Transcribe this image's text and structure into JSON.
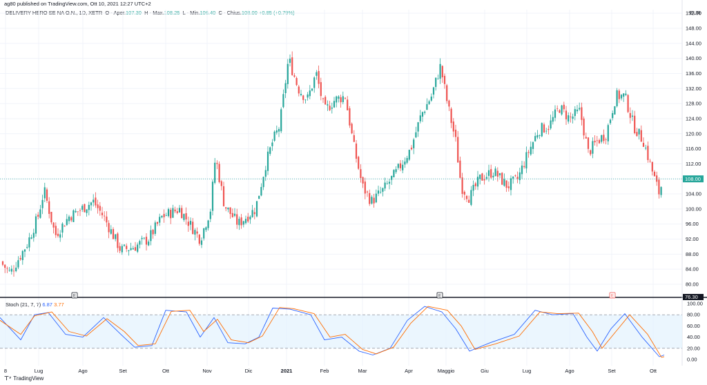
{
  "header": {
    "text": "ag80 published on TradingView.com, Ott 10, 2021 12:27 UTC+2"
  },
  "legend": {
    "symbol": "DELIVERY HERO SE NA O.N., 1D, XETR",
    "open_label": "O",
    "open_text": "Aper.",
    "open": "107.30",
    "high_label": "H",
    "high_text": "Max.",
    "high": "108.25",
    "low_label": "L",
    "low_text": "Min.",
    "low": "106.40",
    "close_label": "C",
    "close_text": "Chius.",
    "close": "108.00",
    "change": "+0.85 (+0.79%)"
  },
  "currency": "EUR",
  "stoch_legend": {
    "name": "Stoch (21, 7, 7)",
    "k": "6.87",
    "d": "3.77"
  },
  "footer": {
    "brand": "TradingView"
  },
  "colors": {
    "up": "#26a69a",
    "down": "#ef5350",
    "k_line": "#2962ff",
    "d_line": "#ff6d00",
    "band": "#e3f2fd",
    "price_tag": "#26a69a",
    "low_tag": "#131722"
  },
  "chart_data": [
    {
      "type": "candlestick",
      "title": "DELIVERY HERO SE NA O.N., 1D, XETR",
      "ylim": [
        76.3,
        150
      ],
      "y_ticks": [
        "80.00",
        "84.00",
        "88.00",
        "92.00",
        "96.00",
        "100.00",
        "104.00",
        "108.00",
        "112.00",
        "116.00",
        "120.00",
        "124.00",
        "128.00",
        "132.00",
        "136.00",
        "140.00",
        "144.00",
        "148.00",
        "152.00"
      ],
      "x_tick_labels": [
        "8",
        "Lug",
        "Ago",
        "Set",
        "Ott",
        "Nov",
        "Dic",
        "2021",
        "Feb",
        "Mar",
        "Apr",
        "Maggio",
        "Giu",
        "Lug",
        "Ago",
        "Set",
        "Ott"
      ],
      "last_price": "108.00",
      "low_marker": "76.30",
      "event_markers": [
        "E",
        "E",
        "E"
      ],
      "anchors": [
        {
          "x": 0,
          "close": 86
        },
        {
          "x": 15,
          "close": 83
        },
        {
          "x": 40,
          "close": 91
        },
        {
          "x": 55,
          "close": 98
        },
        {
          "x": 64,
          "close": 105
        },
        {
          "x": 80,
          "close": 93
        },
        {
          "x": 100,
          "close": 98
        },
        {
          "x": 118,
          "close": 100
        },
        {
          "x": 135,
          "close": 102
        },
        {
          "x": 150,
          "close": 98
        },
        {
          "x": 175,
          "close": 89
        },
        {
          "x": 195,
          "close": 90
        },
        {
          "x": 215,
          "close": 92
        },
        {
          "x": 235,
          "close": 98
        },
        {
          "x": 260,
          "close": 100
        },
        {
          "x": 275,
          "close": 96
        },
        {
          "x": 290,
          "close": 92
        },
        {
          "x": 305,
          "close": 100
        },
        {
          "x": 312,
          "close": 114
        },
        {
          "x": 325,
          "close": 101
        },
        {
          "x": 345,
          "close": 96
        },
        {
          "x": 370,
          "close": 100
        },
        {
          "x": 385,
          "close": 112
        },
        {
          "x": 395,
          "close": 118
        },
        {
          "x": 405,
          "close": 122
        },
        {
          "x": 418,
          "close": 140
        },
        {
          "x": 432,
          "close": 132
        },
        {
          "x": 445,
          "close": 129
        },
        {
          "x": 458,
          "close": 136
        },
        {
          "x": 470,
          "close": 126
        },
        {
          "x": 485,
          "close": 129
        },
        {
          "x": 500,
          "close": 130
        },
        {
          "x": 512,
          "close": 117
        },
        {
          "x": 525,
          "close": 106
        },
        {
          "x": 538,
          "close": 102
        },
        {
          "x": 555,
          "close": 105
        },
        {
          "x": 575,
          "close": 110
        },
        {
          "x": 595,
          "close": 116
        },
        {
          "x": 610,
          "close": 125
        },
        {
          "x": 625,
          "close": 130
        },
        {
          "x": 638,
          "close": 138
        },
        {
          "x": 648,
          "close": 128
        },
        {
          "x": 660,
          "close": 118
        },
        {
          "x": 668,
          "close": 106
        },
        {
          "x": 680,
          "close": 103
        },
        {
          "x": 695,
          "close": 108
        },
        {
          "x": 715,
          "close": 110
        },
        {
          "x": 735,
          "close": 106
        },
        {
          "x": 750,
          "close": 108
        },
        {
          "x": 765,
          "close": 115
        },
        {
          "x": 780,
          "close": 121
        },
        {
          "x": 795,
          "close": 122
        },
        {
          "x": 810,
          "close": 127
        },
        {
          "x": 825,
          "close": 124
        },
        {
          "x": 840,
          "close": 126
        },
        {
          "x": 852,
          "close": 115
        },
        {
          "x": 865,
          "close": 118
        },
        {
          "x": 878,
          "close": 120
        },
        {
          "x": 892,
          "close": 130
        },
        {
          "x": 905,
          "close": 130
        },
        {
          "x": 918,
          "close": 122
        },
        {
          "x": 932,
          "close": 118
        },
        {
          "x": 948,
          "close": 108
        },
        {
          "x": 955,
          "close": 104
        },
        {
          "x": 960,
          "close": 108
        }
      ]
    },
    {
      "type": "line",
      "title": "Stoch (21, 7, 7)",
      "ylim": [
        0,
        100
      ],
      "y_ticks": [
        "0.00",
        "20.00",
        "40.00",
        "60.00",
        "80.00",
        "100.00"
      ],
      "band": [
        20,
        80
      ],
      "series": [
        {
          "name": "K",
          "values_by_x": [
            [
              0,
              75
            ],
            [
              30,
              35
            ],
            [
              50,
              80
            ],
            [
              70,
              84
            ],
            [
              95,
              45
            ],
            [
              120,
              40
            ],
            [
              150,
              75
            ],
            [
              175,
              45
            ],
            [
              195,
              22
            ],
            [
              220,
              25
            ],
            [
              240,
              88
            ],
            [
              270,
              85
            ],
            [
              290,
              40
            ],
            [
              310,
              75
            ],
            [
              330,
              30
            ],
            [
              355,
              28
            ],
            [
              375,
              40
            ],
            [
              395,
              92
            ],
            [
              420,
              90
            ],
            [
              450,
              80
            ],
            [
              470,
              35
            ],
            [
              495,
              40
            ],
            [
              520,
              15
            ],
            [
              540,
              8
            ],
            [
              565,
              20
            ],
            [
              590,
              70
            ],
            [
              615,
              95
            ],
            [
              640,
              85
            ],
            [
              660,
              55
            ],
            [
              680,
              15
            ],
            [
              710,
              30
            ],
            [
              745,
              45
            ],
            [
              775,
              88
            ],
            [
              800,
              80
            ],
            [
              830,
              82
            ],
            [
              850,
              40
            ],
            [
              865,
              15
            ],
            [
              885,
              55
            ],
            [
              905,
              82
            ],
            [
              930,
              40
            ],
            [
              955,
              5
            ],
            [
              962,
              8
            ]
          ]
        },
        {
          "name": "D",
          "values_by_x": [
            [
              0,
              70
            ],
            [
              30,
              45
            ],
            [
              50,
              78
            ],
            [
              75,
              85
            ],
            [
              100,
              50
            ],
            [
              125,
              42
            ],
            [
              155,
              73
            ],
            [
              180,
              50
            ],
            [
              200,
              25
            ],
            [
              225,
              28
            ],
            [
              248,
              86
            ],
            [
              275,
              88
            ],
            [
              295,
              50
            ],
            [
              315,
              72
            ],
            [
              335,
              35
            ],
            [
              360,
              30
            ],
            [
              380,
              42
            ],
            [
              405,
              93
            ],
            [
              425,
              91
            ],
            [
              455,
              82
            ],
            [
              478,
              40
            ],
            [
              500,
              45
            ],
            [
              525,
              18
            ],
            [
              545,
              10
            ],
            [
              570,
              22
            ],
            [
              595,
              65
            ],
            [
              620,
              95
            ],
            [
              648,
              88
            ],
            [
              668,
              60
            ],
            [
              688,
              18
            ],
            [
              718,
              28
            ],
            [
              752,
              42
            ],
            [
              782,
              85
            ],
            [
              808,
              82
            ],
            [
              838,
              83
            ],
            [
              858,
              50
            ],
            [
              872,
              20
            ],
            [
              892,
              50
            ],
            [
              912,
              80
            ],
            [
              938,
              45
            ],
            [
              958,
              4
            ],
            [
              962,
              5
            ]
          ]
        }
      ]
    }
  ]
}
